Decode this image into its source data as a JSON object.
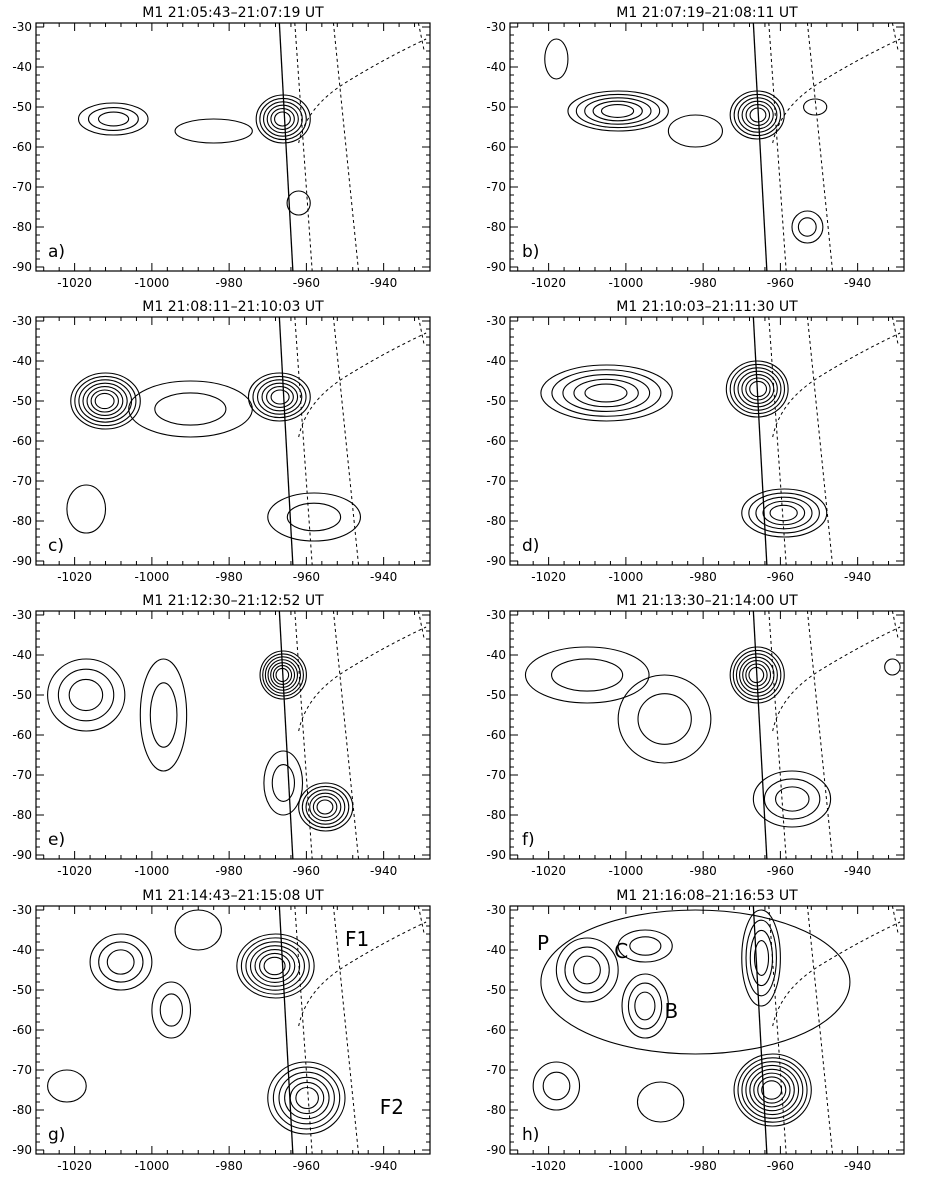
{
  "figure": {
    "x_ticks": [
      "-1020",
      "-1000",
      "-980",
      "-960",
      "-940"
    ],
    "y_ticks": [
      "-30",
      "-40",
      "-50",
      "-60",
      "-70",
      "-80",
      "-90"
    ],
    "panels": [
      {
        "title": "M1 21:05:43–21:07:19 UT",
        "label": "a)",
        "annotations": [],
        "sources": [
          {
            "x": -966,
            "y": -53,
            "rx": 7,
            "ry": 6,
            "levels": 6
          },
          {
            "x": -1010,
            "y": -53,
            "rx": 9,
            "ry": 4,
            "levels": 3
          },
          {
            "x": -984,
            "y": -56,
            "rx": 10,
            "ry": 3,
            "levels": 1
          },
          {
            "x": -962,
            "y": -74,
            "rx": 3,
            "ry": 3,
            "levels": 1
          }
        ]
      },
      {
        "title": "M1 21:07:19–21:08:11 UT",
        "label": "b)",
        "annotations": [],
        "sources": [
          {
            "x": -1002,
            "y": -51,
            "rx": 13,
            "ry": 5,
            "levels": 5
          },
          {
            "x": -966,
            "y": -52,
            "rx": 7,
            "ry": 6,
            "levels": 6
          },
          {
            "x": -1018,
            "y": -38,
            "rx": 3,
            "ry": 5,
            "levels": 1
          },
          {
            "x": -982,
            "y": -56,
            "rx": 7,
            "ry": 4,
            "levels": 1
          },
          {
            "x": -953,
            "y": -80,
            "rx": 4,
            "ry": 4,
            "levels": 2
          },
          {
            "x": -951,
            "y": -50,
            "rx": 3,
            "ry": 2,
            "levels": 1
          }
        ]
      },
      {
        "title": "M1 21:08:11–21:10:03 UT",
        "label": "c)",
        "annotations": [],
        "sources": [
          {
            "x": -1012,
            "y": -50,
            "rx": 9,
            "ry": 7,
            "levels": 7
          },
          {
            "x": -967,
            "y": -49,
            "rx": 8,
            "ry": 6,
            "levels": 6
          },
          {
            "x": -990,
            "y": -52,
            "rx": 16,
            "ry": 7,
            "levels": 2
          },
          {
            "x": -1017,
            "y": -77,
            "rx": 5,
            "ry": 6,
            "levels": 1
          },
          {
            "x": -958,
            "y": -79,
            "rx": 12,
            "ry": 6,
            "levels": 2
          }
        ]
      },
      {
        "title": "M1 21:10:03–21:11:30 UT",
        "label": "d)",
        "annotations": [],
        "sources": [
          {
            "x": -1005,
            "y": -48,
            "rx": 17,
            "ry": 7,
            "levels": 5
          },
          {
            "x": -966,
            "y": -47,
            "rx": 8,
            "ry": 7,
            "levels": 7
          },
          {
            "x": -959,
            "y": -78,
            "rx": 11,
            "ry": 6,
            "levels": 5
          }
        ]
      },
      {
        "title": "M1 21:12:30–21:12:52 UT",
        "label": "e)",
        "annotations": [],
        "sources": [
          {
            "x": -1017,
            "y": -50,
            "rx": 10,
            "ry": 9,
            "levels": 3
          },
          {
            "x": -997,
            "y": -55,
            "rx": 6,
            "ry": 14,
            "levels": 2
          },
          {
            "x": -966,
            "y": -45,
            "rx": 6,
            "ry": 6,
            "levels": 7
          },
          {
            "x": -966,
            "y": -72,
            "rx": 5,
            "ry": 8,
            "levels": 2
          },
          {
            "x": -955,
            "y": -78,
            "rx": 7,
            "ry": 6,
            "levels": 6
          }
        ]
      },
      {
        "title": "M1 21:13:30–21:14:00 UT",
        "label": "f)",
        "annotations": [],
        "sources": [
          {
            "x": -1010,
            "y": -45,
            "rx": 16,
            "ry": 7,
            "levels": 2
          },
          {
            "x": -990,
            "y": -56,
            "rx": 12,
            "ry": 11,
            "levels": 2
          },
          {
            "x": -966,
            "y": -45,
            "rx": 7,
            "ry": 7,
            "levels": 7
          },
          {
            "x": -957,
            "y": -76,
            "rx": 10,
            "ry": 7,
            "levels": 3
          },
          {
            "x": -931,
            "y": -43,
            "rx": 2,
            "ry": 2,
            "levels": 1
          }
        ]
      },
      {
        "title": "M1 21:14:43–21:15:08 UT",
        "label": "g)",
        "annotations": [
          {
            "text": "F1",
            "x": -950,
            "y": -39
          },
          {
            "text": "F2",
            "x": -941,
            "y": -81
          }
        ],
        "sources": [
          {
            "x": -1008,
            "y": -43,
            "rx": 8,
            "ry": 7,
            "levels": 3
          },
          {
            "x": -995,
            "y": -55,
            "rx": 5,
            "ry": 7,
            "levels": 2
          },
          {
            "x": -968,
            "y": -44,
            "rx": 10,
            "ry": 8,
            "levels": 7
          },
          {
            "x": -960,
            "y": -77,
            "rx": 10,
            "ry": 9,
            "levels": 6
          },
          {
            "x": -1022,
            "y": -74,
            "rx": 5,
            "ry": 4,
            "levels": 1
          },
          {
            "x": -988,
            "y": -35,
            "rx": 6,
            "ry": 5,
            "levels": 1
          }
        ]
      },
      {
        "title": "M1 21:16:08–21:16:53 UT",
        "label": "h)",
        "annotations": [
          {
            "text": "P",
            "x": -1023,
            "y": -40
          },
          {
            "text": "C",
            "x": -1003,
            "y": -42
          },
          {
            "text": "B",
            "x": -990,
            "y": -57
          }
        ],
        "sources": [
          {
            "x": -1010,
            "y": -45,
            "rx": 8,
            "ry": 8,
            "levels": 3
          },
          {
            "x": -995,
            "y": -39,
            "rx": 7,
            "ry": 4,
            "levels": 2
          },
          {
            "x": -995,
            "y": -54,
            "rx": 6,
            "ry": 8,
            "levels": 3
          },
          {
            "x": -965,
            "y": -42,
            "rx": 5,
            "ry": 12,
            "levels": 4
          },
          {
            "x": -962,
            "y": -75,
            "rx": 10,
            "ry": 9,
            "levels": 8
          },
          {
            "x": -1018,
            "y": -74,
            "rx": 6,
            "ry": 6,
            "levels": 2
          },
          {
            "x": -991,
            "y": -78,
            "rx": 6,
            "ry": 5,
            "levels": 1
          },
          {
            "x": -982,
            "y": -48,
            "rx": 40,
            "ry": 18,
            "levels": 1
          }
        ]
      }
    ]
  }
}
